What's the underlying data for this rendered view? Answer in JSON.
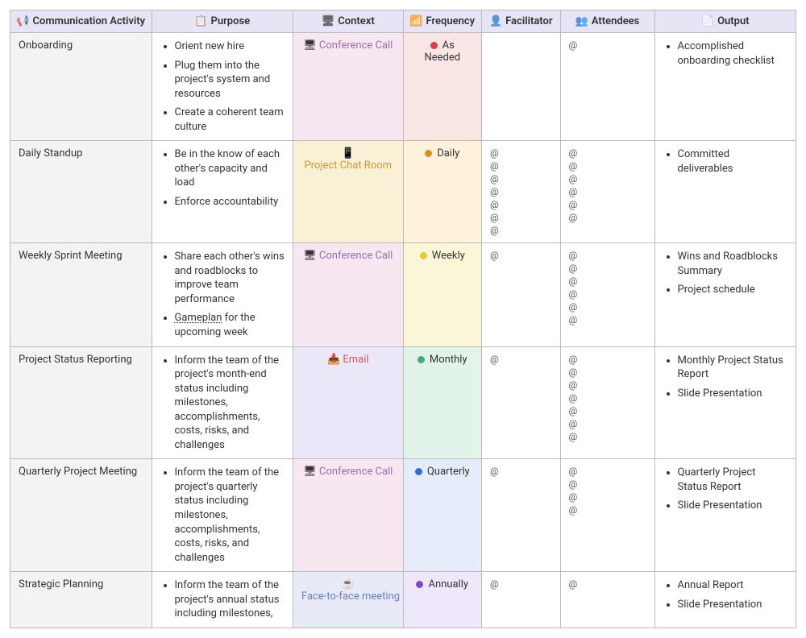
{
  "columns": [
    {
      "key": "activity",
      "label": "Communication Activity",
      "icon": "📢",
      "icon_name": "megaphone-icon"
    },
    {
      "key": "purpose",
      "label": "Purpose",
      "icon": "📋",
      "icon_name": "clipboard-icon"
    },
    {
      "key": "context",
      "label": "Context",
      "icon": "🖥",
      "icon_name": "context-icon"
    },
    {
      "key": "frequency",
      "label": "Frequency",
      "icon": "📶",
      "icon_name": "frequency-icon"
    },
    {
      "key": "facilitator",
      "label": "Facilitator",
      "icon": "👤",
      "icon_name": "person-icon"
    },
    {
      "key": "attendees",
      "label": "Attendees",
      "icon": "👥",
      "icon_name": "people-icon"
    },
    {
      "key": "output",
      "label": "Output",
      "icon": "📄",
      "icon_name": "document-icon"
    }
  ],
  "context_styles": {
    "Conference Call": {
      "icon": "🖥",
      "text_color": "#9a6fb0",
      "bg": "#f7e7f0",
      "icon_name": "monitor-icon"
    },
    "Project Chat Room": {
      "icon": "📱",
      "text_color": "#c79b3b",
      "bg": "#faf0d6",
      "icon_name": "phone-icon"
    },
    "Email": {
      "icon": "📥",
      "text_color": "#d05a5a",
      "bg": "#eae7f8",
      "icon_name": "inbox-icon"
    },
    "Face-to-face meeting": {
      "icon": "☕",
      "text_color": "#6a7bd6",
      "bg": "#e8eaf6",
      "icon_name": "coffee-icon"
    }
  },
  "frequency_styles": {
    "As Needed": {
      "dot": "#e23b3b",
      "bg": "#fbe6e6"
    },
    "Daily": {
      "dot": "#e28a1f",
      "bg": "#fff2dc"
    },
    "Weekly": {
      "dot": "#e6c933",
      "bg": "#fcf6d9"
    },
    "Monthly": {
      "dot": "#3bb273",
      "bg": "#e2f3e9"
    },
    "Quarterly": {
      "dot": "#2c6dd6",
      "bg": "#e6edfa"
    },
    "Annually": {
      "dot": "#7a4bd1",
      "bg": "#efe7fa"
    }
  },
  "rows": [
    {
      "activity": "Onboarding",
      "purpose": [
        "Orient new hire",
        "Plug them into the project's system and resources",
        "Create a coherent team culture"
      ],
      "context": "Conference Call",
      "frequency": "As Needed",
      "facilitator_count": 0,
      "attendees_count": 1,
      "output": [
        "Accomplished onboarding checklist"
      ]
    },
    {
      "activity": "Daily Standup",
      "purpose": [
        "Be in the know of each other's capacity and load",
        "Enforce accountability"
      ],
      "context": "Project Chat Room",
      "frequency": "Daily",
      "facilitator_count": 7,
      "attendees_count": 6,
      "output": [
        "Committed deliverables"
      ]
    },
    {
      "activity": "Weekly Sprint Meeting",
      "purpose": [
        "Share each other's wins and roadblocks to improve team performance",
        "<u>Gameplan</u> for the upcoming week"
      ],
      "context": "Conference Call",
      "frequency": "Weekly",
      "facilitator_count": 1,
      "attendees_count": 6,
      "output": [
        "Wins and Roadblocks Summary",
        "Project schedule"
      ]
    },
    {
      "activity": "Project Status Reporting",
      "purpose": [
        "Inform the team of the project's month-end status including milestones, accomplishments, costs, risks, and challenges"
      ],
      "context": "Email",
      "frequency": "Monthly",
      "facilitator_count": 1,
      "attendees_count": 7,
      "output": [
        "Monthly Project Status Report",
        "Slide Presentation"
      ]
    },
    {
      "activity": "Quarterly Project Meeting",
      "purpose": [
        "Inform the team of the project's quarterly status including milestones, accomplishments, costs, risks, and challenges"
      ],
      "context": "Conference Call",
      "frequency": "Quarterly",
      "facilitator_count": 1,
      "attendees_count": 4,
      "output": [
        "Quarterly Project Status Report",
        "Slide Presentation"
      ]
    },
    {
      "activity": "Strategic Planning",
      "purpose": [
        "Inform the team of the project's annual status including milestones,"
      ],
      "context": "Face-to-face meeting",
      "frequency": "Annually",
      "facilitator_count": 1,
      "attendees_count": 1,
      "output": [
        "Annual Report",
        "Slide Presentation"
      ]
    }
  ]
}
